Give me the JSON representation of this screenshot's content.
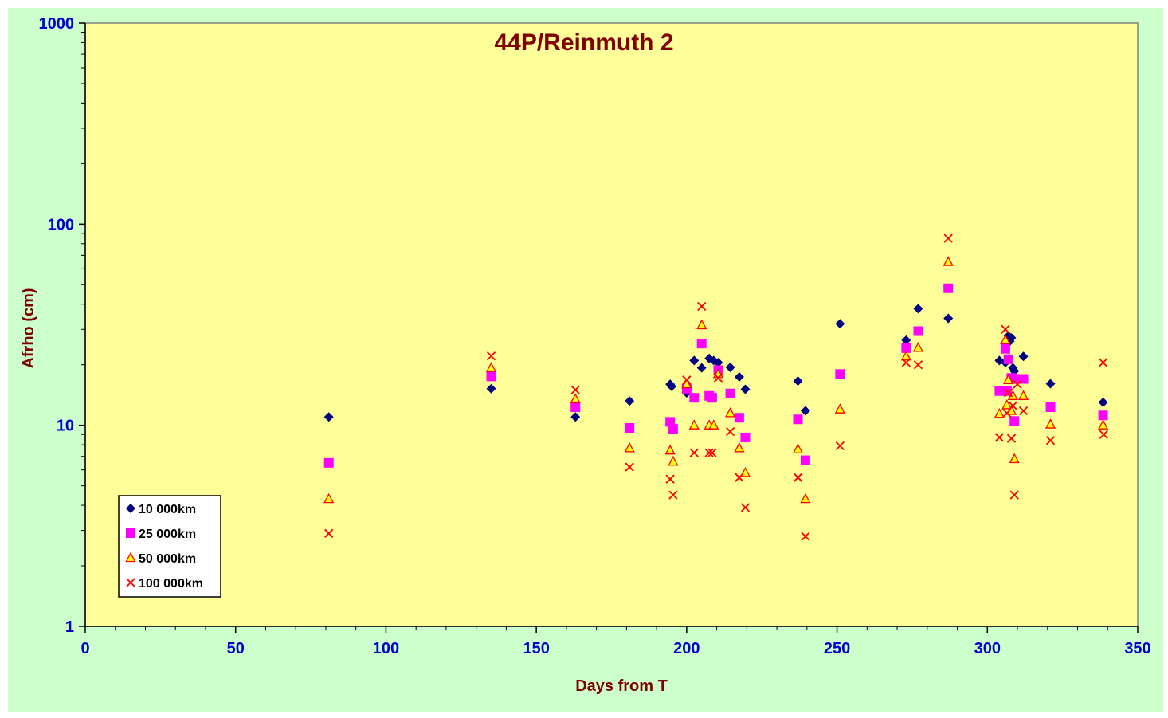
{
  "colors": {
    "background": "#ccffcc",
    "plot_background": "#ffff99",
    "tick_labels": "#0000cc",
    "titles": "#800000",
    "series_10000": "#000080",
    "series_25000": "#ff00ff",
    "series_50000_fill": "#ffff00",
    "series_50000_edge": "#ff0000",
    "series_100000": "#ff0000"
  },
  "chart_data": {
    "type": "scatter",
    "title": "44P/Reinmuth 2",
    "xlabel": "Days from T",
    "ylabel": "Afrho (cm)",
    "xlim": [
      0,
      350
    ],
    "ylim": [
      1,
      1000
    ],
    "yscale": "log",
    "grid": false,
    "legend_position": "bottom-left",
    "xticks": [
      0,
      50,
      100,
      150,
      200,
      250,
      300,
      350
    ],
    "xtick_labels": [
      "0",
      "50",
      "100",
      "150",
      "200",
      "250",
      "300",
      "350"
    ],
    "yticks": [
      1,
      10,
      100,
      1000
    ],
    "ytick_labels": [
      "1",
      "10",
      "100",
      "1000"
    ],
    "series": [
      {
        "name": "10 000km",
        "marker": "diamond",
        "points": [
          [
            81,
            11
          ],
          [
            135,
            15.2
          ],
          [
            163,
            11
          ],
          [
            181,
            13.2
          ],
          [
            194.5,
            16
          ],
          [
            195,
            15.6
          ],
          [
            200,
            14.5
          ],
          [
            202.5,
            21
          ],
          [
            205,
            19.3
          ],
          [
            207.5,
            21.5
          ],
          [
            209,
            21
          ],
          [
            210.5,
            20.5
          ],
          [
            214.5,
            19.4
          ],
          [
            217.5,
            17.4
          ],
          [
            219.5,
            15.1
          ],
          [
            237,
            16.6
          ],
          [
            239.5,
            11.8
          ],
          [
            251,
            32
          ],
          [
            273,
            26.5
          ],
          [
            277,
            38
          ],
          [
            287,
            34
          ],
          [
            304,
            21
          ],
          [
            306,
            20.5
          ],
          [
            307,
            27.8
          ],
          [
            307.5,
            26.2
          ],
          [
            308,
            27.2
          ],
          [
            308.5,
            19.3
          ],
          [
            309,
            18.6
          ],
          [
            312,
            22
          ],
          [
            321,
            16.1
          ],
          [
            338.5,
            13
          ]
        ]
      },
      {
        "name": "25 000km",
        "marker": "square",
        "points": [
          [
            81,
            6.5
          ],
          [
            135,
            17.5
          ],
          [
            163,
            12.3
          ],
          [
            181,
            9.7
          ],
          [
            194.5,
            10.4
          ],
          [
            195.5,
            9.6
          ],
          [
            200,
            15.2
          ],
          [
            202.5,
            13.7
          ],
          [
            205,
            25.5
          ],
          [
            207.5,
            14
          ],
          [
            208.5,
            13.7
          ],
          [
            210.5,
            18.8
          ],
          [
            214.5,
            14.4
          ],
          [
            217.5,
            10.9
          ],
          [
            219.5,
            8.7
          ],
          [
            237,
            10.7
          ],
          [
            239.5,
            6.7
          ],
          [
            251,
            18
          ],
          [
            273,
            24.2
          ],
          [
            277,
            29.4
          ],
          [
            287,
            48
          ],
          [
            304,
            14.8
          ],
          [
            306,
            24
          ],
          [
            306.5,
            14.8
          ],
          [
            307,
            21.3
          ],
          [
            308,
            17.2
          ],
          [
            309,
            10.5
          ],
          [
            310,
            17
          ],
          [
            312,
            17
          ],
          [
            321,
            12.3
          ],
          [
            338.5,
            11.2
          ]
        ]
      },
      {
        "name": "50 000km",
        "marker": "triangle",
        "points": [
          [
            81,
            4.3
          ],
          [
            135,
            19.3
          ],
          [
            163,
            13.5
          ],
          [
            181,
            7.7
          ],
          [
            194.5,
            7.5
          ],
          [
            195.5,
            6.6
          ],
          [
            200,
            16
          ],
          [
            202.5,
            10
          ],
          [
            205,
            31.5
          ],
          [
            207.5,
            10
          ],
          [
            209,
            10
          ],
          [
            210.5,
            18
          ],
          [
            214.5,
            11.5
          ],
          [
            217.5,
            7.7
          ],
          [
            219.5,
            5.8
          ],
          [
            237,
            7.6
          ],
          [
            239.5,
            4.3
          ],
          [
            251,
            12
          ],
          [
            273,
            22
          ],
          [
            277,
            24.3
          ],
          [
            287,
            65
          ],
          [
            304,
            11.4
          ],
          [
            306,
            26.5
          ],
          [
            306.5,
            12.6
          ],
          [
            307,
            16.8
          ],
          [
            308,
            11.8
          ],
          [
            308.5,
            14
          ],
          [
            309,
            6.8
          ],
          [
            312,
            14
          ],
          [
            321,
            10.1
          ],
          [
            338.5,
            10
          ]
        ]
      },
      {
        "name": "100 000km",
        "marker": "x",
        "points": [
          [
            81,
            2.9
          ],
          [
            135,
            22.1
          ],
          [
            163,
            15
          ],
          [
            181,
            6.2
          ],
          [
            194.5,
            5.4
          ],
          [
            195.5,
            4.5
          ],
          [
            200,
            16.8
          ],
          [
            202.5,
            7.3
          ],
          [
            205,
            39
          ],
          [
            207.5,
            7.3
          ],
          [
            208.5,
            7.3
          ],
          [
            210.5,
            17.2
          ],
          [
            214.5,
            9.3
          ],
          [
            217.5,
            5.5
          ],
          [
            219.5,
            3.9
          ],
          [
            237,
            5.5
          ],
          [
            239.5,
            2.8
          ],
          [
            251,
            7.9
          ],
          [
            273,
            20.5
          ],
          [
            277,
            20
          ],
          [
            287,
            85
          ],
          [
            304,
            8.7
          ],
          [
            306,
            30
          ],
          [
            306.5,
            11.5
          ],
          [
            307,
            14.5
          ],
          [
            308,
            8.6
          ],
          [
            308.5,
            12.5
          ],
          [
            309,
            4.5
          ],
          [
            310,
            16
          ],
          [
            312,
            11.8
          ],
          [
            321,
            8.4
          ],
          [
            338.5,
            20.5
          ],
          [
            338.7,
            9
          ]
        ]
      }
    ]
  }
}
